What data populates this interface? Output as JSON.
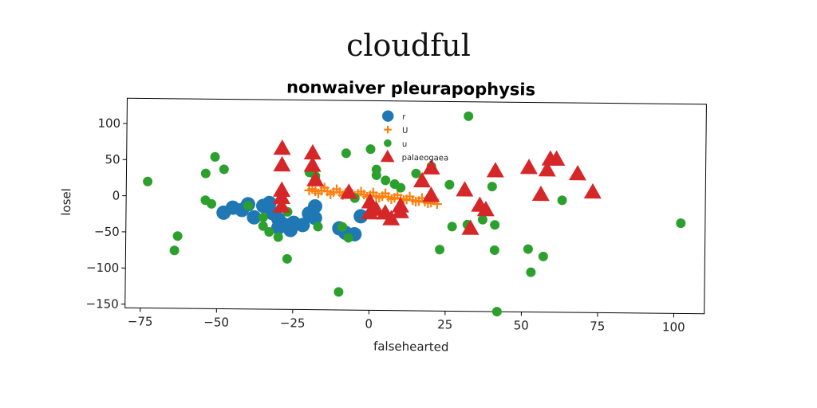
{
  "suptitle": "cloudful",
  "chart_data": {
    "type": "scatter",
    "title": "nonwaiver pleurapophysis",
    "xlabel": "falsehearted",
    "ylabel": "losel",
    "xlim": [
      -80,
      110
    ],
    "ylim": [
      -155,
      135
    ],
    "xticks": [
      -75,
      -50,
      -25,
      0,
      25,
      50,
      75,
      100
    ],
    "yticks": [
      100,
      50,
      0,
      -50,
      -100,
      -150
    ],
    "grid": false,
    "legend_position": "top-center",
    "series": [
      {
        "name": "r",
        "marker": "circle-large",
        "color": "#1f77b4",
        "points": [
          [
            -45,
            -15
          ],
          [
            -48,
            -22
          ],
          [
            -42,
            -18
          ],
          [
            -38,
            -28
          ],
          [
            -35,
            -12
          ],
          [
            -32,
            -22
          ],
          [
            -30,
            -30
          ],
          [
            -28,
            -38
          ],
          [
            -25,
            -35
          ],
          [
            -22,
            -38
          ],
          [
            -26,
            -45
          ],
          [
            -30,
            -42
          ],
          [
            -20,
            -22
          ],
          [
            -18,
            -28
          ],
          [
            -18,
            -12
          ],
          [
            -10,
            -42
          ],
          [
            -8,
            -48
          ],
          [
            -5,
            -50
          ],
          [
            -3,
            -25
          ],
          [
            -40,
            -10
          ],
          [
            -33,
            -8
          ]
        ]
      },
      {
        "name": "U",
        "marker": "plus",
        "color": "#ff7f0e",
        "points": [
          [
            -20,
            10
          ],
          [
            -18,
            9
          ],
          [
            -16,
            10
          ],
          [
            -14,
            9
          ],
          [
            -12,
            8
          ],
          [
            -10,
            8
          ],
          [
            -8,
            7
          ],
          [
            -6,
            6
          ],
          [
            -4,
            6
          ],
          [
            -2,
            5
          ],
          [
            0,
            4
          ],
          [
            2,
            3
          ],
          [
            4,
            3
          ],
          [
            6,
            2
          ],
          [
            8,
            1
          ],
          [
            10,
            0
          ],
          [
            12,
            -1
          ],
          [
            14,
            -2
          ],
          [
            16,
            -3
          ],
          [
            18,
            -4
          ],
          [
            20,
            -5
          ],
          [
            22,
            -7
          ],
          [
            -19,
            12
          ],
          [
            -15,
            14
          ],
          [
            -11,
            12
          ],
          [
            -7,
            10
          ],
          [
            -3,
            9
          ],
          [
            1,
            8
          ],
          [
            5,
            7
          ],
          [
            9,
            5
          ],
          [
            13,
            3
          ],
          [
            17,
            1
          ],
          [
            21,
            -1
          ],
          [
            -17,
            6
          ],
          [
            -13,
            5
          ],
          [
            -9,
            4
          ],
          [
            -5,
            3
          ],
          [
            -1,
            2
          ],
          [
            3,
            1
          ],
          [
            7,
            -1
          ],
          [
            11,
            -2
          ],
          [
            15,
            -4
          ],
          [
            19,
            -6
          ]
        ]
      },
      {
        "name": "u",
        "marker": "circle",
        "color": "#2ca02c",
        "points": [
          [
            -73,
            20
          ],
          [
            -63,
            -55
          ],
          [
            -64,
            -75
          ],
          [
            -54,
            -5
          ],
          [
            -52,
            -10
          ],
          [
            -54,
            32
          ],
          [
            -51,
            55
          ],
          [
            -48,
            38
          ],
          [
            -40,
            -12
          ],
          [
            -35,
            -28
          ],
          [
            -35,
            -40
          ],
          [
            -33,
            -48
          ],
          [
            -30,
            -55
          ],
          [
            -27,
            -20
          ],
          [
            -27,
            -85
          ],
          [
            -20,
            35
          ],
          [
            -18,
            30
          ],
          [
            -17,
            -40
          ],
          [
            -10,
            -130
          ],
          [
            -9,
            -40
          ],
          [
            -8,
            62
          ],
          [
            -7,
            -55
          ],
          [
            -5,
            0
          ],
          [
            0,
            68
          ],
          [
            2,
            40
          ],
          [
            2,
            32
          ],
          [
            5,
            25
          ],
          [
            8,
            20
          ],
          [
            10,
            15
          ],
          [
            15,
            35
          ],
          [
            20,
            45
          ],
          [
            23,
            -70
          ],
          [
            26,
            20
          ],
          [
            27,
            -38
          ],
          [
            32,
            -35
          ],
          [
            32,
            115
          ],
          [
            37,
            -28
          ],
          [
            40,
            18
          ],
          [
            41,
            -70
          ],
          [
            41,
            -35
          ],
          [
            42,
            -155
          ],
          [
            52,
            -68
          ],
          [
            53,
            -100
          ],
          [
            57,
            -78
          ],
          [
            63,
            0
          ],
          [
            102,
            -30
          ]
        ]
      },
      {
        "name": "palaeogaea",
        "marker": "triangle",
        "color": "#d62728",
        "points": [
          [
            -29,
            68
          ],
          [
            -29,
            45
          ],
          [
            -29,
            10
          ],
          [
            -29,
            0
          ],
          [
            -29,
            -12
          ],
          [
            -19,
            62
          ],
          [
            -19,
            45
          ],
          [
            -18,
            25
          ],
          [
            -7,
            8
          ],
          [
            0,
            -5
          ],
          [
            0,
            -20
          ],
          [
            2,
            -15
          ],
          [
            5,
            -20
          ],
          [
            7,
            -28
          ],
          [
            10,
            -18
          ],
          [
            10,
            -10
          ],
          [
            17,
            25
          ],
          [
            20,
            43
          ],
          [
            20,
            5
          ],
          [
            31,
            13
          ],
          [
            33,
            -40
          ],
          [
            36,
            -8
          ],
          [
            38,
            -14
          ],
          [
            41,
            40
          ],
          [
            52,
            45
          ],
          [
            56,
            8
          ],
          [
            58,
            42
          ],
          [
            59,
            57
          ],
          [
            61,
            57
          ],
          [
            68,
            37
          ],
          [
            73,
            12
          ]
        ]
      }
    ]
  }
}
